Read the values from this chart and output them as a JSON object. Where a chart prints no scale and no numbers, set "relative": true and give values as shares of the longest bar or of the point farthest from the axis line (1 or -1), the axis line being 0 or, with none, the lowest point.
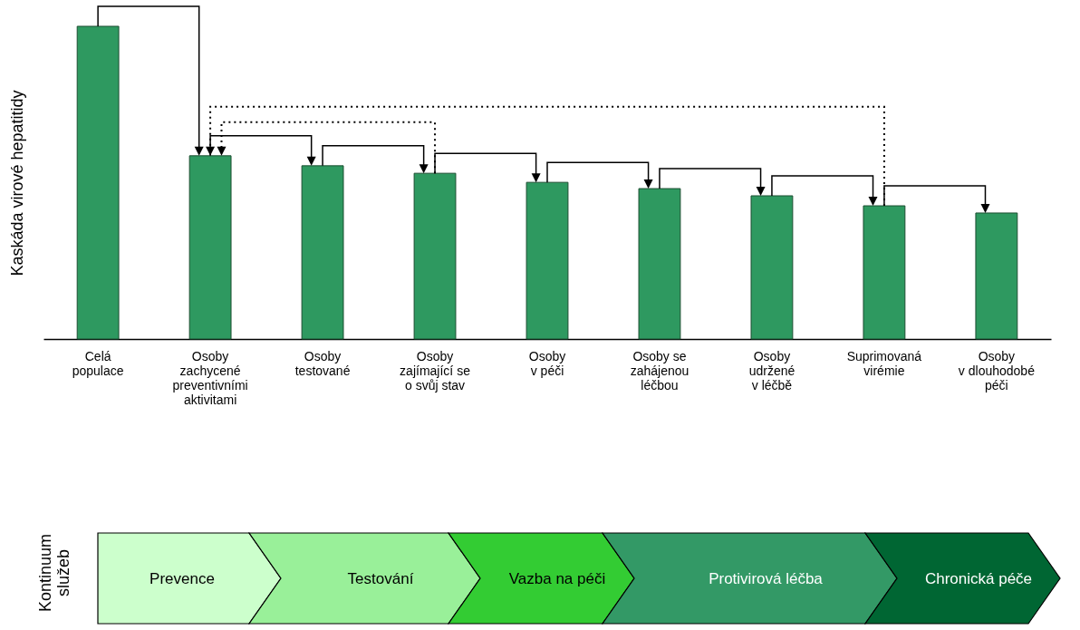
{
  "chart_data": [
    {
      "type": "bar",
      "relative": true,
      "ylabel": "Kaskáda virové hepatitidy",
      "categories": [
        "Celá\npopulace",
        "Osoby\nzachycené\npreventivními\naktivitami",
        "Osoby\ntestované",
        "Osoby\nzajímající se\no svůj stav",
        "Osoby\nv péči",
        "Osoby se\nzahájenou\nléčbou",
        "Osoby\nudržené\nv léčbě",
        "Suprimovaná\nvirémie",
        "Osoby\nv dlouhodobé\npéči"
      ],
      "values": [
        1,
        0.586,
        0.554,
        0.53,
        0.501,
        0.481,
        0.458,
        0.426,
        0.403
      ],
      "color": "#2e9960"
    },
    {
      "type": "other",
      "ylabel": "Kontinuum\nslužeb",
      "categories": [
        "Prevence",
        "Testování",
        "Vazba na péči",
        "Protivirová léčba",
        "Chronická péče"
      ],
      "colors": [
        "#ccffcc",
        "#99f099",
        "#33cc33",
        "#339966",
        "#006633"
      ]
    }
  ]
}
